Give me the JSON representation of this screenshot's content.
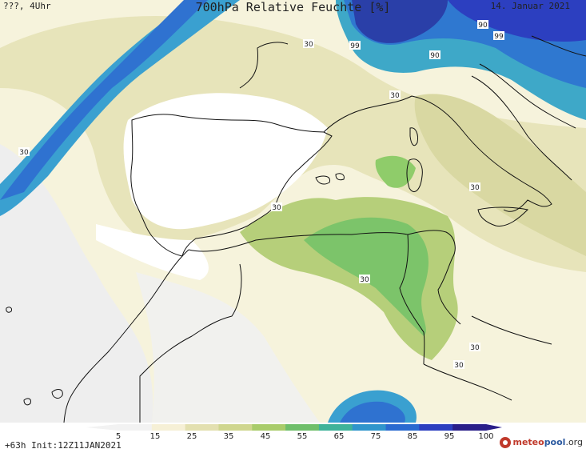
{
  "header": {
    "location": "???, 4Uhr",
    "title": "700hPa Relative Feuchte [%]",
    "date": "14. Januar 2021"
  },
  "map": {
    "contour_labels": [
      "30",
      "99",
      "90",
      "99",
      "90",
      "30",
      "30",
      "30",
      "30",
      "30",
      "30",
      "30"
    ]
  },
  "footer": {
    "init": "+63h Init:12Z11JAN2021",
    "brand_part1": "meteo",
    "brand_part2": "pool",
    "brand_suffix": ".org",
    "colorbar_labels": [
      "5",
      "15",
      "25",
      "35",
      "45",
      "55",
      "65",
      "75",
      "85",
      "95",
      "100"
    ]
  },
  "colors": {
    "scale": [
      "#f2f2f2",
      "#f6f0d6",
      "#e3e0b0",
      "#cfd68e",
      "#a9cc6a",
      "#6fbf6a",
      "#3fb39a",
      "#2f95cc",
      "#2a6ad0",
      "#2c3fc0",
      "#2a1f8a"
    ]
  }
}
